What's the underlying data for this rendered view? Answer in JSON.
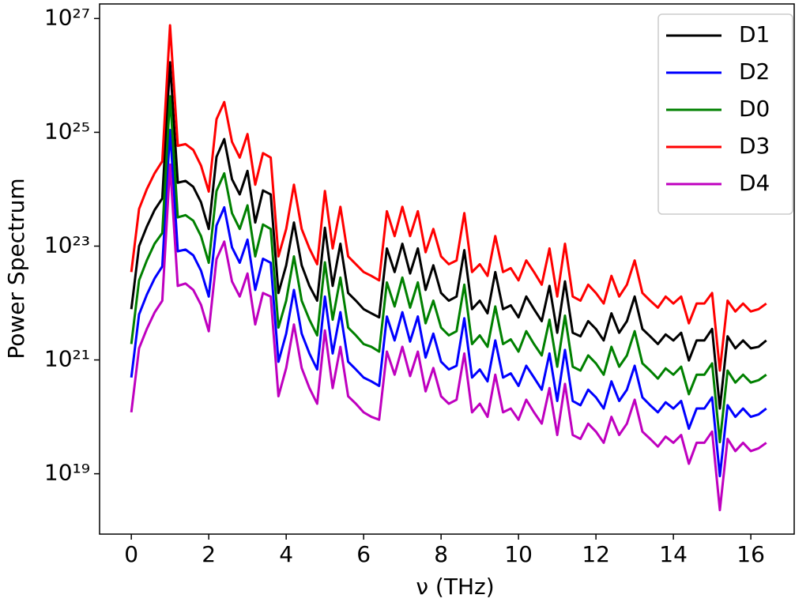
{
  "chart_data": {
    "type": "line",
    "xlabel": "ν (THz)",
    "ylabel": "Power Spectrum",
    "y_scale": "log",
    "legend": "upper right",
    "xlim": [
      -0.82,
      17.12
    ],
    "xticks": [
      0,
      2,
      4,
      6,
      8,
      10,
      12,
      14,
      16
    ],
    "ylim": [
      8.7e+17,
      1.8e+27
    ],
    "yticks": [
      {
        "value": 1e+19,
        "label": "10¹⁹"
      },
      {
        "value": 1e+21,
        "label": "10²¹"
      },
      {
        "value": 1e+23,
        "label": "10²³"
      },
      {
        "value": 1e+25,
        "label": "10²⁵"
      },
      {
        "value": 1e+27,
        "label": "10²⁷"
      }
    ],
    "x": [
      0,
      0.2,
      0.4,
      0.6,
      0.8,
      1.0,
      1.2,
      1.4,
      1.6,
      1.8,
      2.0,
      2.2,
      2.4,
      2.6,
      2.8,
      3.0,
      3.2,
      3.4,
      3.6,
      3.8,
      4.0,
      4.2,
      4.4,
      4.6,
      4.8,
      5.0,
      5.2,
      5.4,
      5.6,
      5.8,
      6.0,
      6.2,
      6.4,
      6.6,
      6.8,
      7.0,
      7.2,
      7.4,
      7.6,
      7.8,
      8.0,
      8.2,
      8.4,
      8.6,
      8.8,
      9.0,
      9.2,
      9.4,
      9.6,
      9.8,
      10.0,
      10.2,
      10.4,
      10.6,
      10.8,
      11.0,
      11.2,
      11.4,
      11.6,
      11.8,
      12.0,
      12.2,
      12.4,
      12.6,
      12.8,
      13.0,
      13.2,
      13.4,
      13.6,
      13.8,
      14.0,
      14.2,
      14.4,
      14.6,
      14.8,
      15.0,
      15.2,
      15.4,
      15.6,
      15.8,
      16.0,
      16.2,
      16.4
    ],
    "series": [
      {
        "name": "D1",
        "color": "#000000",
        "values": [
          7.8e+21,
          1e+23,
          2.2e+23,
          4.3e+23,
          6.9e+23,
          1.7e+26,
          1.3e+24,
          1.4e+24,
          1.1e+24,
          5.9e+23,
          2e+23,
          3.7e+24,
          7.6e+24,
          1.5e+24,
          8.1e+23,
          2.1e+24,
          2.6e+23,
          9.5e+23,
          8.1e+23,
          1.5e+22,
          4.6e+22,
          2.6e+23,
          4.6e+22,
          2e+22,
          1.1e+22,
          2.1e+23,
          2e+22,
          1.1e+23,
          1.5e+22,
          1.1e+22,
          7.8e+21,
          6.6e+21,
          5.6e+21,
          9.1e+22,
          3.5e+22,
          1.1e+23,
          3.3e+22,
          9.1e+22,
          1.7e+22,
          4.6e+22,
          1.5e+22,
          1.1e+22,
          1.3e+22,
          8.5e+22,
          7.8e+21,
          1.1e+22,
          6.6e+21,
          3.5e+22,
          7.8e+21,
          9.1e+21,
          5.6e+21,
          1.3e+22,
          7.8e+21,
          4.8e+21,
          2e+22,
          3e+21,
          2.4e+22,
          3e+21,
          2.6e+21,
          4.8e+21,
          3.5e+21,
          2.2e+21,
          6.6e+21,
          3e+21,
          4.8e+21,
          1.3e+22,
          3.5e+21,
          2.6e+21,
          1.9e+21,
          2.8e+21,
          2.2e+21,
          3e+21,
          9.8e+20,
          2.2e+21,
          2.2e+21,
          3.5e+21,
          1.4e+20,
          2.6e+21,
          1.6e+21,
          2.2e+21,
          1.6e+21,
          1.7e+21,
          2.2e+21
        ]
      },
      {
        "name": "D2",
        "color": "#0000ff",
        "values": [
          4.9e+20,
          6.3e+21,
          1.4e+22,
          2.7e+22,
          4.4e+22,
          1.1e+25,
          8.1e+22,
          8.7e+22,
          6.9e+22,
          3.7e+22,
          1.3e+22,
          2.3e+23,
          4.8e+23,
          9.5e+22,
          5.1e+22,
          1.3e+23,
          1.7e+22,
          6e+22,
          5.1e+22,
          9.3e+20,
          2.9e+21,
          1.7e+22,
          2.9e+21,
          1.3e+21,
          6.8e+20,
          1.3e+22,
          1.3e+21,
          6.9e+21,
          9.3e+20,
          6.8e+20,
          4.9e+20,
          4.2e+20,
          3.5e+20,
          5.8e+21,
          2.2e+21,
          6.9e+21,
          2.1e+21,
          5.8e+21,
          1.1e+21,
          2.9e+21,
          9.3e+20,
          6.8e+20,
          7.9e+20,
          5.4e+21,
          4.9e+20,
          6.8e+20,
          4.2e+20,
          2.2e+21,
          4.9e+20,
          5.8e+20,
          3.5e+20,
          7.9e+20,
          4.9e+20,
          3e+20,
          1.3e+21,
          1.9e+20,
          1.5e+21,
          1.9e+20,
          1.6e+20,
          3e+20,
          2.2e+20,
          1.4e+20,
          4.2e+20,
          1.9e+20,
          3e+20,
          7.9e+20,
          2.2e+20,
          1.6e+20,
          1.2e+20,
          1.8e+20,
          1.4e+20,
          1.9e+20,
          6.2e+19,
          1.4e+20,
          1.4e+20,
          2.2e+20,
          9.1e+18,
          1.6e+20,
          1e+20,
          1.4e+20,
          1e+20,
          1.1e+20,
          1.4e+20
        ]
      },
      {
        "name": "D0",
        "color": "#008000",
        "values": [
          1.9e+21,
          2.5e+22,
          5.6e+22,
          1.1e+23,
          1.7e+23,
          4.3e+25,
          3.2e+23,
          3.5e+23,
          2.8e+23,
          1.5e+23,
          5.1e+22,
          9.3e+23,
          1.9e+24,
          3.8e+23,
          2e+23,
          5.2e+23,
          6.6e+22,
          2.4e+23,
          2e+23,
          3.7e+21,
          1.1e+22,
          6.6e+22,
          1.1e+22,
          5.1e+21,
          2.7e+21,
          5.2e+22,
          5.1e+21,
          2.8e+22,
          3.7e+21,
          2.7e+21,
          1.9e+21,
          1.7e+21,
          1.4e+21,
          2.3e+22,
          8.7e+21,
          2.8e+22,
          8.3e+21,
          2.3e+22,
          4.4e+21,
          1.1e+22,
          3.7e+21,
          2.7e+21,
          3.2e+21,
          2.1e+22,
          1.9e+21,
          2.7e+21,
          1.7e+21,
          8.7e+21,
          1.9e+21,
          2.3e+21,
          1.4e+21,
          3.2e+21,
          1.9e+21,
          1.2e+21,
          5.1e+21,
          7.6e+20,
          6e+21,
          7.6e+20,
          6.5e+20,
          1.2e+21,
          8.7e+20,
          5.5e+20,
          1.7e+21,
          7.6e+20,
          1.2e+21,
          3.2e+21,
          8.7e+20,
          6.5e+20,
          4.7e+20,
          7.1e+20,
          5.5e+20,
          7.6e+20,
          2.5e+20,
          5.5e+20,
          5.5e+20,
          8.7e+20,
          3.6e+19,
          6.5e+20,
          4e+20,
          5.5e+20,
          4e+20,
          4.4e+20,
          5.5e+20
        ]
      },
      {
        "name": "D3",
        "color": "#ff0000",
        "values": [
          3.5e+22,
          4.5e+23,
          1e+24,
          1.9e+24,
          3.1e+24,
          7.6e+26,
          5.8e+24,
          6.2e+24,
          4.9e+24,
          2.6e+24,
          9.1e+23,
          1.7e+25,
          3.4e+25,
          6.8e+24,
          3.6e+24,
          9.3e+24,
          1.2e+24,
          4.3e+24,
          3.6e+24,
          6.6e+22,
          2e+23,
          1.2e+24,
          2e+23,
          9.1e+22,
          4.8e+22,
          9.3e+23,
          9.1e+22,
          4.9e+23,
          6.6e+22,
          4.8e+22,
          3.5e+22,
          3e+22,
          2.5e+22,
          4.1e+23,
          1.5e+23,
          4.9e+23,
          1.5e+23,
          4.1e+23,
          7.8e+22,
          2e+23,
          6.6e+22,
          4.8e+22,
          5.6e+22,
          3.8e+23,
          3.5e+22,
          4.8e+22,
          3e+22,
          1.5e+23,
          3.5e+22,
          4.1e+22,
          2.5e+22,
          5.6e+22,
          3.5e+22,
          2.1e+22,
          9.1e+22,
          1.3e+22,
          1.1e+23,
          1.3e+22,
          1.1e+22,
          2.1e+22,
          1.5e+22,
          9.8e+21,
          3e+22,
          1.3e+22,
          2.1e+22,
          5.6e+22,
          1.5e+22,
          1.1e+22,
          8.3e+21,
          1.3e+22,
          9.8e+21,
          1.3e+22,
          4.4e+21,
          9.8e+21,
          9.8e+21,
          1.5e+22,
          6.5e+20,
          1.1e+22,
          7.1e+21,
          9.8e+21,
          7.1e+21,
          7.8e+21,
          9.8e+21
        ]
      },
      {
        "name": "D4",
        "color": "#bf00bf",
        "values": [
          1.2e+20,
          1.6e+21,
          3.5e+21,
          6.8e+21,
          1.1e+22,
          2.7e+24,
          2e+22,
          2.2e+22,
          1.7e+22,
          9.3e+21,
          3.2e+21,
          5.9e+22,
          1.2e+23,
          2.4e+22,
          1.3e+22,
          3.3e+22,
          4.2e+21,
          1.5e+22,
          1.3e+22,
          2.3e+20,
          7.2e+20,
          4.2e+21,
          7.2e+20,
          3.2e+20,
          1.7e+20,
          3.3e+21,
          3.2e+20,
          1.7e+21,
          2.3e+20,
          1.7e+20,
          1.2e+20,
          1e+20,
          8.9e+19,
          1.4e+21,
          5.5e+20,
          1.7e+21,
          5.2e+20,
          1.4e+21,
          2.8e+20,
          7.2e+20,
          2.3e+20,
          1.7e+20,
          2e+20,
          1.3e+21,
          1.2e+20,
          1.7e+20,
          1e+20,
          5.5e+20,
          1.2e+20,
          1.4e+20,
          8.9e+19,
          2e+20,
          1.2e+20,
          7.6e+19,
          3.2e+20,
          4.8e+19,
          3.8e+20,
          4.8e+19,
          4.1e+19,
          7.6e+19,
          5.5e+19,
          3.5e+19,
          1e+20,
          4.8e+19,
          7.6e+19,
          2e+20,
          5.5e+19,
          4.1e+19,
          3e+19,
          4.5e+19,
          3.5e+19,
          4.8e+19,
          1.5e+19,
          3.5e+19,
          3.5e+19,
          5.5e+19,
          2.3e+18,
          4.1e+19,
          2.5e+19,
          3.5e+19,
          2.5e+19,
          2.8e+19,
          3.5e+19
        ]
      }
    ]
  }
}
